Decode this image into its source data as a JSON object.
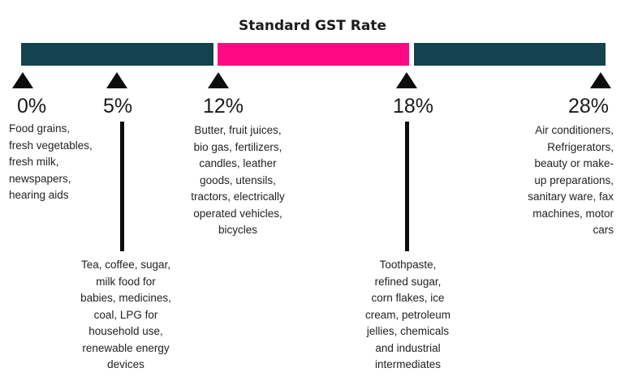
{
  "title": "Standard GST Rate",
  "colors": {
    "teal": "#13434f",
    "pink": "#ff0a83",
    "black": "#0d0d0d"
  },
  "rates": [
    {
      "label": "0%",
      "items": "Food grains,\nfresh vegetables,\nfresh milk,\nnewspapers,\nhearing aids"
    },
    {
      "label": "5%",
      "items": "Tea, coffee, sugar,\nmilk food for\nbabies, medicines,\ncoal, LPG for\nhousehold use,\nrenewable energy\ndevices"
    },
    {
      "label": "12%",
      "items": "Butter, fruit juices,\nbio gas, fertilizers,\ncandles, leather\ngoods, utensils,\ntractors, electrically\noperated vehicles,\nbicycles"
    },
    {
      "label": "18%",
      "items": "Toothpaste,\nrefined sugar,\ncorn flakes, ice\ncream, petroleum\njellies, chemicals\nand industrial\nintermediates"
    },
    {
      "label": "28%",
      "items": "Air conditioners,\nRefrigerators,\nbeauty or make-\nup preparations,\nsanitary ware, fax\nmachines, motor\ncars"
    }
  ]
}
